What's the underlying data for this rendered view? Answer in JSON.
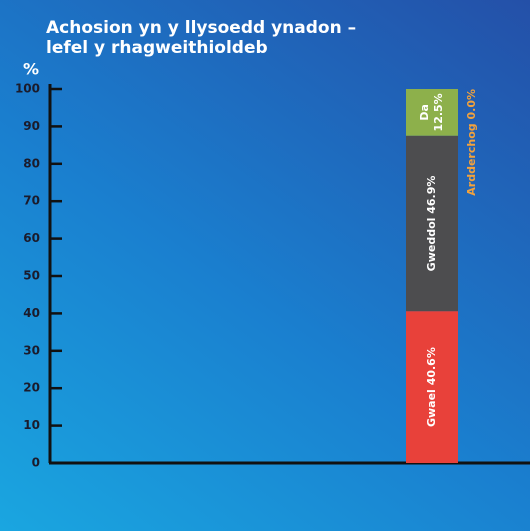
{
  "chart_data": {
    "type": "stacked_bar",
    "title": "Achosion yn y llysoedd ynadon – lefel y rhagweithioldeb",
    "y_label": "%",
    "categories": [
      null
    ],
    "series": [
      {
        "name": "Gwael",
        "color": "#e8413a",
        "values": [
          40.6
        ],
        "value_labels": [
          "40.6%"
        ]
      },
      {
        "name": "Gweddol",
        "color": "#4d4d4f",
        "values": [
          46.9
        ],
        "value_labels": [
          "46.9%"
        ]
      },
      {
        "name": "Da",
        "color": "#8db04b",
        "values": [
          12.5
        ],
        "value_labels": [
          "12.5%"
        ]
      },
      {
        "name": "Ardderchog",
        "color": "#f2a23c",
        "values": [
          0.0
        ],
        "value_labels": [
          "0.0%"
        ]
      }
    ],
    "ylim": [
      0,
      100
    ],
    "yticks": [
      0,
      10,
      20,
      30,
      40,
      50,
      60,
      70,
      80,
      90,
      100
    ]
  }
}
